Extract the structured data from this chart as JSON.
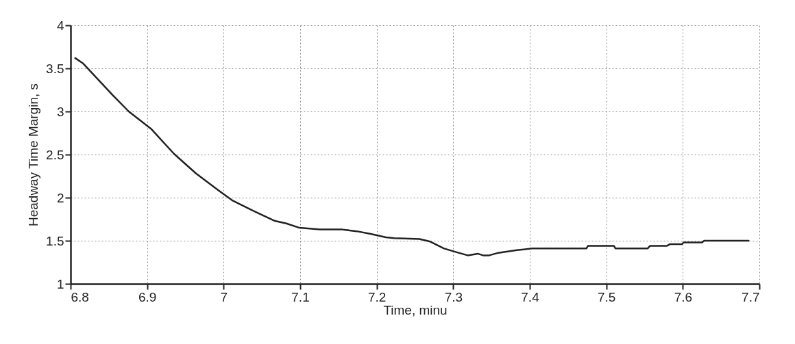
{
  "chart_data": {
    "type": "line",
    "xlabel": "Time,  minu",
    "ylabel": "Headway Time Margin, s",
    "xlim": [
      6.8,
      7.7
    ],
    "xticks": [
      6.8,
      6.9,
      7,
      7.1,
      7.2,
      7.3,
      7.4,
      7.5,
      7.6,
      7.7
    ],
    "ylim": [
      1,
      4
    ],
    "yticks": [
      1,
      1.5,
      2,
      2.5,
      3,
      3.5,
      4
    ],
    "grid": true,
    "line_style": "solid",
    "marker": "none",
    "x": [
      6.806,
      6.816,
      6.835,
      6.855,
      6.876,
      6.905,
      6.935,
      6.964,
      6.994,
      7.011,
      7.038,
      7.067,
      7.082,
      7.099,
      7.126,
      7.155,
      7.174,
      7.192,
      7.212,
      7.223,
      7.256,
      7.27,
      7.288,
      7.307,
      7.319,
      7.332,
      7.339,
      7.347,
      7.359,
      7.383,
      7.403,
      7.474,
      7.476,
      7.51,
      7.512,
      7.554,
      7.557,
      7.579,
      7.583,
      7.599,
      7.601,
      7.625,
      7.628,
      7.686
    ],
    "series": [
      {
        "color": "#222222",
        "values": [
          3.62,
          3.56,
          3.38,
          3.19,
          3.0,
          2.8,
          2.51,
          2.28,
          2.08,
          1.97,
          1.85,
          1.73,
          1.7,
          1.65,
          1.63,
          1.63,
          1.61,
          1.58,
          1.54,
          1.53,
          1.52,
          1.49,
          1.41,
          1.36,
          1.33,
          1.35,
          1.33,
          1.33,
          1.36,
          1.39,
          1.41,
          1.41,
          1.44,
          1.44,
          1.41,
          1.41,
          1.44,
          1.44,
          1.46,
          1.46,
          1.48,
          1.48,
          1.5,
          1.5
        ]
      }
    ]
  }
}
